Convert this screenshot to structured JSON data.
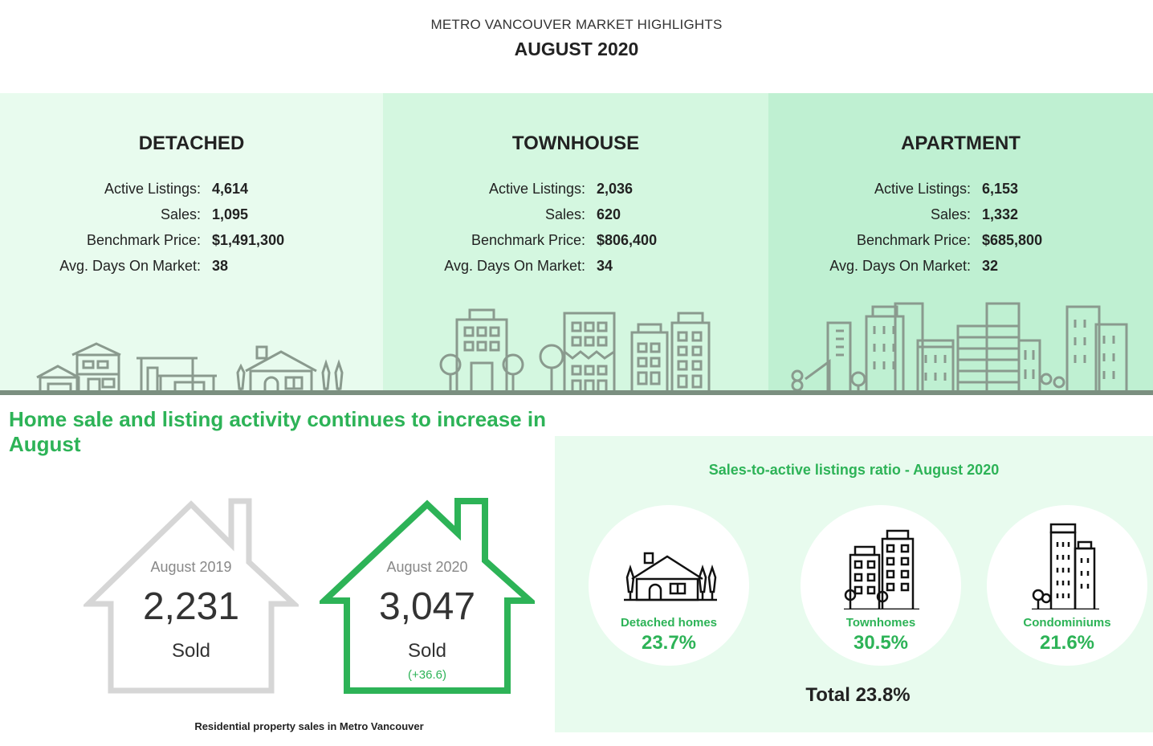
{
  "header": {
    "subtitle": "METRO VANCOUVER MARKET HIGHLIGHTS",
    "title": "AUGUST 2020"
  },
  "categories": [
    {
      "name": "DETACHED",
      "stats": [
        {
          "label": "Active Listings:",
          "value": "4,614"
        },
        {
          "label": "Sales:",
          "value": "1,095"
        },
        {
          "label": "Benchmark Price:",
          "value": "$1,491,300"
        },
        {
          "label": "Avg. Days On Market:",
          "value": "38"
        }
      ]
    },
    {
      "name": "TOWNHOUSE",
      "stats": [
        {
          "label": "Active Listings:",
          "value": "2,036"
        },
        {
          "label": "Sales:",
          "value": "620"
        },
        {
          "label": "Benchmark Price:",
          "value": "$806,400"
        },
        {
          "label": "Avg. Days On Market:",
          "value": "34"
        }
      ]
    },
    {
      "name": "APARTMENT",
      "stats": [
        {
          "label": "Active Listings:",
          "value": "6,153"
        },
        {
          "label": "Sales:",
          "value": "1,332"
        },
        {
          "label": "Benchmark Price:",
          "value": "$685,800"
        },
        {
          "label": "Avg. Days On Market:",
          "value": "32"
        }
      ]
    }
  ],
  "headline": "Home sale and listing activity continues to increase in August",
  "sales": {
    "prev": {
      "year": "August 2019",
      "number": "2,231",
      "label": "Sold"
    },
    "curr": {
      "year": "August 2020",
      "number": "3,047",
      "label": "Sold",
      "change": "(+36.6)"
    },
    "caption": "Residential property sales in Metro Vancouver"
  },
  "ratio": {
    "title": "Sales-to-active listings ratio - August 2020",
    "items": [
      {
        "label": "Detached homes",
        "value": "23.7%",
        "icon": "detached-house-icon"
      },
      {
        "label": "Townhomes",
        "value": "30.5%",
        "icon": "townhouse-icon"
      },
      {
        "label": "Condominiums",
        "value": "21.6%",
        "icon": "condo-tower-icon"
      }
    ],
    "total": "Total 23.8%"
  },
  "colors": {
    "accent": "#2db357",
    "prev_house": "#d6d6d6",
    "panel_light": "#e8fbee",
    "panel_mid": "#d4f7e0",
    "panel_dark": "#bff0d2",
    "skyline": "#8a9a8e"
  }
}
